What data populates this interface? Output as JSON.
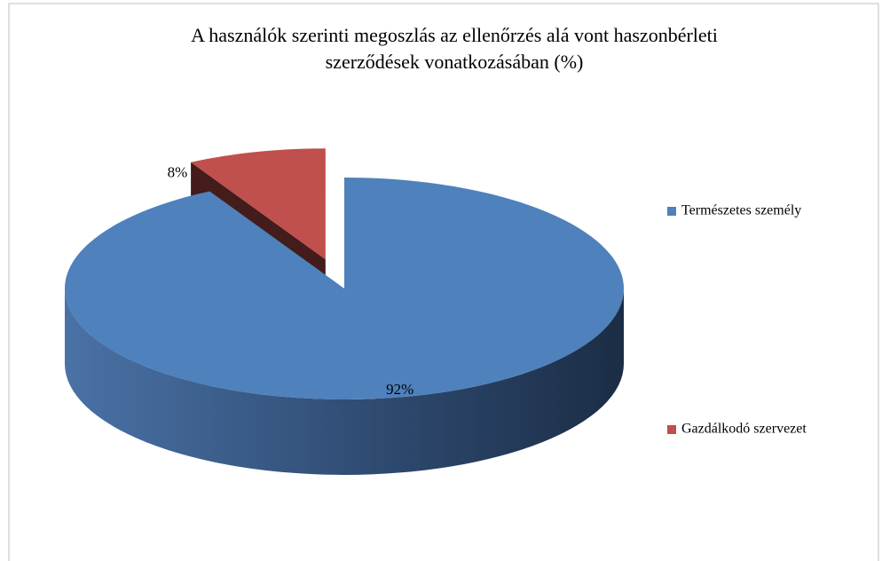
{
  "chart_data": {
    "type": "pie3d",
    "title": [
      "A használók szerinti megoszlás az ellenőrzés alá vont haszonbérleti",
      "szerződések vonatkozásában (%)"
    ],
    "categories": [
      "Természetes személy",
      "Gazdálkodó szervezet"
    ],
    "values": [
      92,
      8
    ],
    "value_labels": [
      "92%",
      "8%"
    ],
    "colors": [
      "#4f81bd",
      "#c0504d"
    ],
    "legend": "right"
  }
}
